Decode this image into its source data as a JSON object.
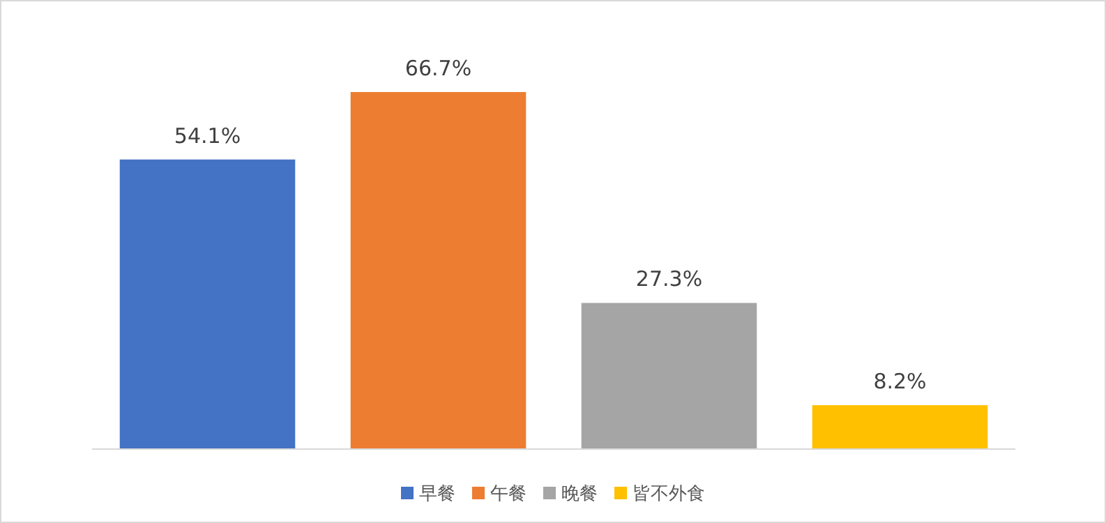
{
  "chart_data": {
    "type": "bar",
    "categories": [
      null
    ],
    "series": [
      {
        "name": "早餐",
        "color": "#4472c4",
        "values": [
          54.1
        ],
        "value_labels": [
          "54.1%"
        ]
      },
      {
        "name": "午餐",
        "color": "#ed7d31",
        "values": [
          66.7
        ],
        "value_labels": [
          "66.7%"
        ]
      },
      {
        "name": "晚餐",
        "color": "#a5a5a5",
        "values": [
          27.3
        ],
        "value_labels": [
          "27.3%"
        ]
      },
      {
        "name": "皆不外食",
        "color": "#ffc000",
        "values": [
          8.2
        ],
        "value_labels": [
          "8.2%"
        ]
      }
    ],
    "legend": "bottom"
  }
}
